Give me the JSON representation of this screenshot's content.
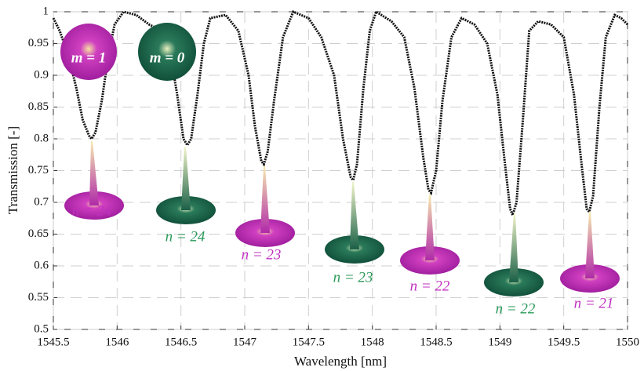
{
  "chart_data": {
    "type": "line",
    "xlabel": "Wavelength [nm]",
    "ylabel": "Transmission [-]",
    "color": "#111111",
    "grid": true,
    "xlim": [
      1545.5,
      1550
    ],
    "ylim": [
      0.5,
      1
    ],
    "xticks": [
      1545.5,
      1546,
      1546.5,
      1547,
      1547.5,
      1548,
      1548.5,
      1549,
      1549.5,
      1550
    ],
    "yticks": [
      0.5,
      0.55,
      0.6,
      0.65,
      0.7,
      0.75,
      0.8,
      0.85,
      0.9,
      0.95,
      1
    ],
    "x": [
      1545.5,
      1545.55,
      1545.62,
      1545.68,
      1545.73,
      1545.78,
      1545.8,
      1545.83,
      1545.88,
      1545.93,
      1545.98,
      1546.05,
      1546.15,
      1546.25,
      1546.35,
      1546.42,
      1546.47,
      1546.52,
      1546.55,
      1546.58,
      1546.63,
      1546.68,
      1546.73,
      1546.85,
      1546.95,
      1547.03,
      1547.08,
      1547.13,
      1547.15,
      1547.18,
      1547.23,
      1547.3,
      1547.38,
      1547.5,
      1547.6,
      1547.7,
      1547.77,
      1547.83,
      1547.85,
      1547.88,
      1547.93,
      1547.98,
      1548.03,
      1548.15,
      1548.25,
      1548.33,
      1548.4,
      1548.44,
      1548.46,
      1548.5,
      1548.55,
      1548.62,
      1548.7,
      1548.8,
      1548.9,
      1548.98,
      1549.04,
      1549.08,
      1549.1,
      1549.13,
      1549.18,
      1549.23,
      1549.3,
      1549.4,
      1549.5,
      1549.58,
      1549.64,
      1549.68,
      1549.7,
      1549.73,
      1549.78,
      1549.83,
      1549.9,
      1549.95,
      1550
    ],
    "values": [
      0.99,
      0.97,
      0.93,
      0.88,
      0.83,
      0.805,
      0.8,
      0.81,
      0.86,
      0.93,
      0.98,
      1.0,
      0.995,
      0.98,
      0.97,
      0.93,
      0.87,
      0.8,
      0.79,
      0.8,
      0.87,
      0.95,
      0.99,
      0.995,
      0.97,
      0.9,
      0.82,
      0.765,
      0.76,
      0.78,
      0.86,
      0.96,
      1.0,
      0.99,
      0.96,
      0.9,
      0.8,
      0.74,
      0.735,
      0.76,
      0.88,
      0.97,
      1.0,
      0.985,
      0.96,
      0.88,
      0.77,
      0.72,
      0.715,
      0.75,
      0.86,
      0.96,
      0.99,
      0.98,
      0.95,
      0.87,
      0.76,
      0.69,
      0.68,
      0.7,
      0.83,
      0.97,
      0.985,
      0.98,
      0.96,
      0.87,
      0.76,
      0.69,
      0.685,
      0.71,
      0.85,
      0.96,
      0.995,
      0.99,
      0.98
    ],
    "annotations": [
      {
        "text": "m = 1",
        "color": "#ffffff"
      },
      {
        "text": "m = 0",
        "color": "#ffffff"
      },
      {
        "text": "n = 24",
        "color": "#c030c0"
      },
      {
        "text": "n = 24",
        "color": "#2a9a5a"
      },
      {
        "text": "n = 23",
        "color": "#c030c0"
      },
      {
        "text": "n = 23",
        "color": "#2a9a5a"
      },
      {
        "text": "n = 22",
        "color": "#c030c0"
      },
      {
        "text": "n = 22",
        "color": "#2a9a5a"
      },
      {
        "text": "n = 21",
        "color": "#c030c0"
      }
    ]
  }
}
